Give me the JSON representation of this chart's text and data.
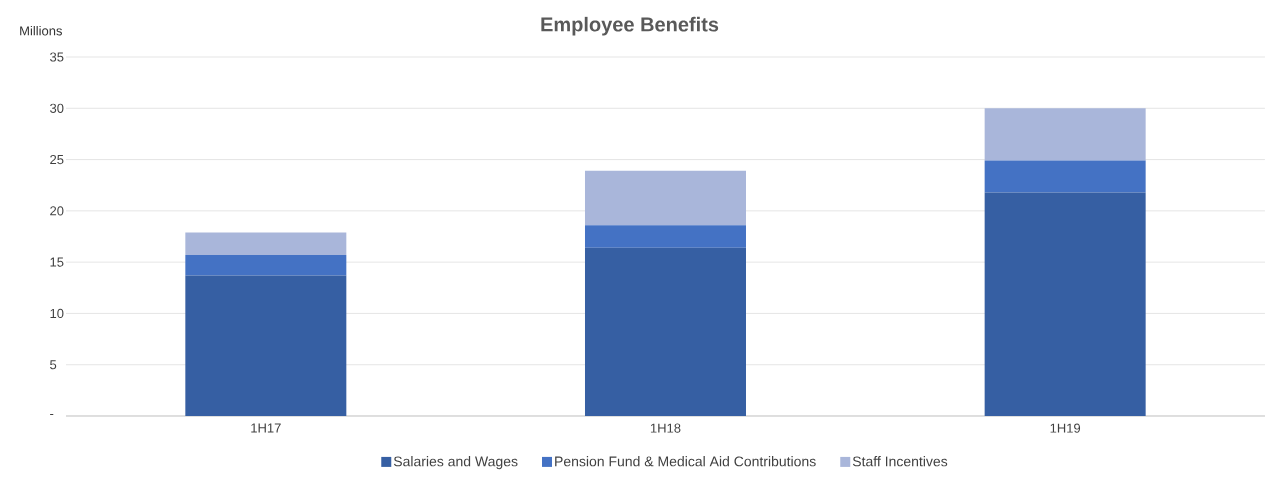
{
  "chart_data": {
    "type": "bar",
    "title": "Employee Benefits",
    "ylabel": "Millions",
    "stacked": true,
    "categories": [
      "1H17",
      "1H18",
      "1H19"
    ],
    "series": [
      {
        "name": "Salaries and Wages",
        "color": "#365fa3",
        "values": [
          13.7,
          16.4,
          21.8
        ]
      },
      {
        "name": "Pension Fund & Medical Aid Contributions",
        "color": "#4472c4",
        "values": [
          2,
          2.2,
          3.1
        ]
      },
      {
        "name": "Staff Incentives",
        "color": "#a9b6da",
        "values": [
          2.2,
          5.3,
          5.1
        ]
      }
    ],
    "ylim": [
      0,
      35
    ],
    "yticks": [
      {
        "value": 0,
        "label": "-"
      },
      5,
      10,
      15,
      20,
      25,
      30,
      35
    ],
    "grid": "y",
    "legend": "bottom"
  }
}
